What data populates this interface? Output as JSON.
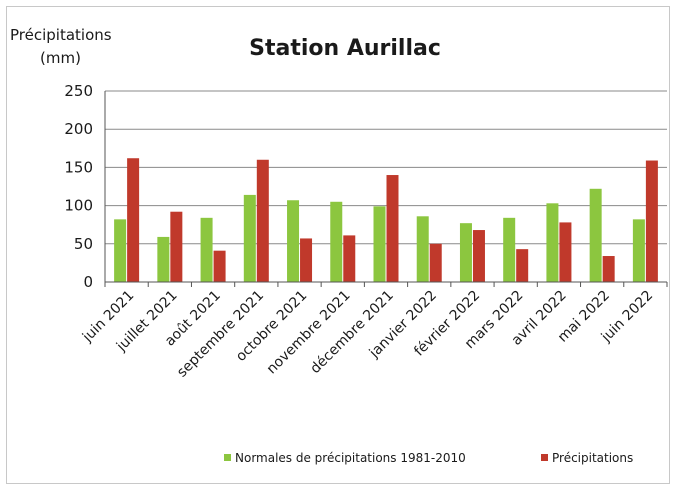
{
  "chart_data": {
    "type": "bar",
    "title": "Station Aurillac",
    "ylabel_line1": "Précipitations",
    "ylabel_line2": "(mm)",
    "ylim": [
      0,
      250
    ],
    "yticks": [
      0,
      50,
      100,
      150,
      200,
      250
    ],
    "grid": true,
    "legend_position": "bottom",
    "categories": [
      "juin 2021",
      "juillet 2021",
      "août 2021",
      "septembre 2021",
      "octobre 2021",
      "novembre 2021",
      "décembre 2021",
      "janvier 2022",
      "février 2022",
      "mars 2022",
      "avril 2022",
      "mai 2022",
      "juin 2022"
    ],
    "series": [
      {
        "name": "Normales de précipitations 1981-2010",
        "color": "#8cc63f",
        "values": [
          82,
          59,
          84,
          114,
          107,
          105,
          99,
          86,
          77,
          84,
          103,
          122,
          82
        ]
      },
      {
        "name": "Précipitations",
        "color": "#c0392b",
        "values": [
          162,
          92,
          41,
          160,
          57,
          61,
          140,
          50,
          68,
          43,
          78,
          34,
          159
        ]
      }
    ]
  }
}
